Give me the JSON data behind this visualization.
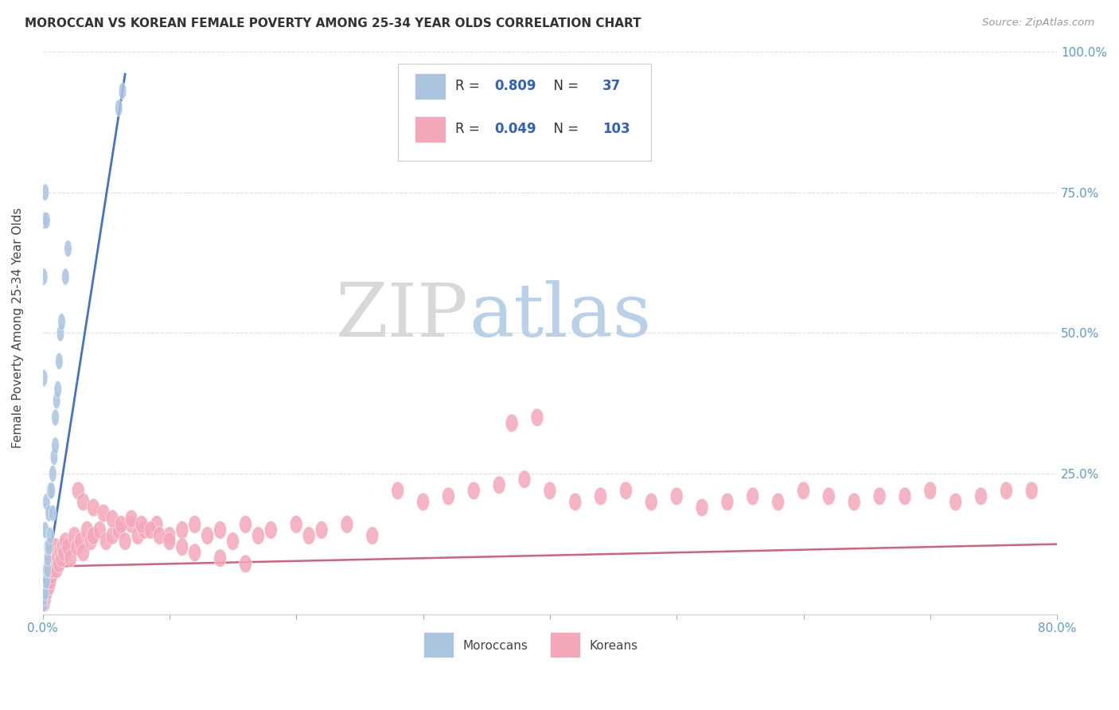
{
  "title": "MOROCCAN VS KOREAN FEMALE POVERTY AMONG 25-34 YEAR OLDS CORRELATION CHART",
  "source": "Source: ZipAtlas.com",
  "ylabel": "Female Poverty Among 25-34 Year Olds",
  "moroccan_R": 0.809,
  "moroccan_N": 37,
  "korean_R": 0.049,
  "korean_N": 103,
  "moroccan_color": "#aac4e0",
  "moroccan_line_color": "#4472c4",
  "korean_color": "#f4a7b9",
  "korean_line_color": "#d4607a",
  "watermark_ZIP_color": "#d8d8d8",
  "watermark_atlas_color": "#b8d0e8",
  "background_color": "#ffffff",
  "grid_color": "#d8d8d8",
  "tick_color": "#5b9bd5",
  "xmin": 0.0,
  "xmax": 0.8,
  "ymin": 0.0,
  "ymax": 1.0,
  "moroccan_x": [
    0.001,
    0.001,
    0.001,
    0.002,
    0.002,
    0.002,
    0.002,
    0.003,
    0.003,
    0.003,
    0.004,
    0.004,
    0.004,
    0.005,
    0.005,
    0.006,
    0.006,
    0.007,
    0.008,
    0.008,
    0.009,
    0.01,
    0.01,
    0.011,
    0.012,
    0.013,
    0.014,
    0.015,
    0.018,
    0.02,
    0.001,
    0.001,
    0.002,
    0.003,
    0.06,
    0.063,
    0.001
  ],
  "moroccan_y": [
    0.02,
    0.03,
    0.05,
    0.04,
    0.06,
    0.07,
    0.15,
    0.06,
    0.08,
    0.2,
    0.08,
    0.1,
    0.12,
    0.12,
    0.18,
    0.14,
    0.22,
    0.22,
    0.18,
    0.25,
    0.28,
    0.3,
    0.35,
    0.38,
    0.4,
    0.45,
    0.5,
    0.52,
    0.6,
    0.65,
    0.6,
    0.7,
    0.75,
    0.7,
    0.9,
    0.93,
    0.42
  ],
  "korean_x": [
    0.001,
    0.001,
    0.001,
    0.002,
    0.002,
    0.002,
    0.003,
    0.003,
    0.004,
    0.004,
    0.005,
    0.005,
    0.006,
    0.006,
    0.007,
    0.007,
    0.008,
    0.009,
    0.01,
    0.01,
    0.011,
    0.012,
    0.013,
    0.014,
    0.015,
    0.016,
    0.017,
    0.018,
    0.02,
    0.022,
    0.025,
    0.027,
    0.03,
    0.032,
    0.035,
    0.038,
    0.04,
    0.045,
    0.05,
    0.055,
    0.06,
    0.065,
    0.07,
    0.075,
    0.08,
    0.09,
    0.1,
    0.11,
    0.12,
    0.13,
    0.14,
    0.15,
    0.16,
    0.17,
    0.18,
    0.2,
    0.21,
    0.22,
    0.24,
    0.26,
    0.28,
    0.3,
    0.32,
    0.34,
    0.36,
    0.38,
    0.4,
    0.42,
    0.44,
    0.46,
    0.48,
    0.5,
    0.52,
    0.54,
    0.56,
    0.58,
    0.6,
    0.62,
    0.64,
    0.66,
    0.68,
    0.7,
    0.72,
    0.74,
    0.76,
    0.78,
    0.37,
    0.39,
    0.028,
    0.032,
    0.04,
    0.048,
    0.055,
    0.062,
    0.07,
    0.078,
    0.085,
    0.092,
    0.1,
    0.11,
    0.12,
    0.14,
    0.16
  ],
  "korean_y": [
    0.02,
    0.04,
    0.06,
    0.03,
    0.05,
    0.07,
    0.04,
    0.06,
    0.05,
    0.07,
    0.05,
    0.08,
    0.06,
    0.09,
    0.07,
    0.1,
    0.08,
    0.09,
    0.1,
    0.12,
    0.08,
    0.1,
    0.09,
    0.11,
    0.1,
    0.12,
    0.11,
    0.13,
    0.12,
    0.1,
    0.14,
    0.12,
    0.13,
    0.11,
    0.15,
    0.13,
    0.14,
    0.15,
    0.13,
    0.14,
    0.15,
    0.13,
    0.16,
    0.14,
    0.15,
    0.16,
    0.14,
    0.15,
    0.16,
    0.14,
    0.15,
    0.13,
    0.16,
    0.14,
    0.15,
    0.16,
    0.14,
    0.15,
    0.16,
    0.14,
    0.22,
    0.2,
    0.21,
    0.22,
    0.23,
    0.24,
    0.22,
    0.2,
    0.21,
    0.22,
    0.2,
    0.21,
    0.19,
    0.2,
    0.21,
    0.2,
    0.22,
    0.21,
    0.2,
    0.21,
    0.21,
    0.22,
    0.2,
    0.21,
    0.22,
    0.22,
    0.34,
    0.35,
    0.22,
    0.2,
    0.19,
    0.18,
    0.17,
    0.16,
    0.17,
    0.16,
    0.15,
    0.14,
    0.13,
    0.12,
    0.11,
    0.1,
    0.09
  ],
  "mor_line_x0": 0.0,
  "mor_line_x1": 0.065,
  "mor_line_y0": 0.02,
  "mor_line_y1": 0.96,
  "kor_line_x0": 0.0,
  "kor_line_x1": 0.8,
  "kor_line_y0": 0.085,
  "kor_line_y1": 0.125
}
